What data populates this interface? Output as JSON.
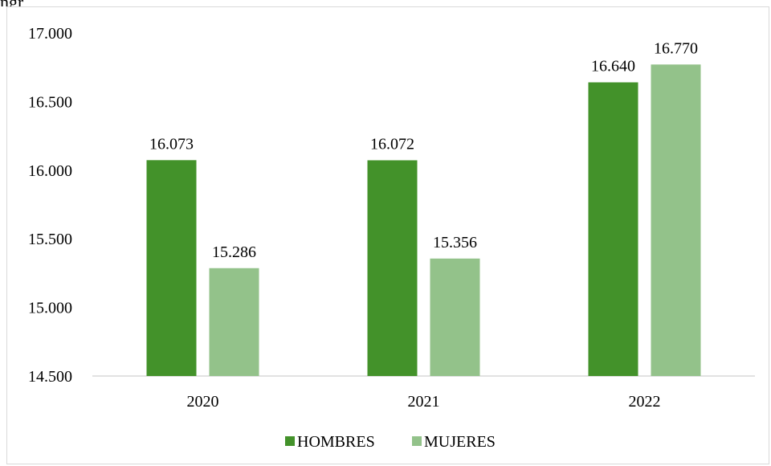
{
  "header": {
    "top_text": "ngr"
  },
  "chart_data": {
    "type": "bar",
    "title": "",
    "xlabel": "",
    "ylabel": "",
    "categories": [
      "2020",
      "2021",
      "2022"
    ],
    "series": [
      {
        "name": "HOMBRES",
        "values": [
          16073,
          16072,
          16640
        ],
        "labels": [
          "16.073",
          "16.072",
          "16.640"
        ],
        "color": "#43922a"
      },
      {
        "name": "MUJERES",
        "values": [
          15286,
          15356,
          16770
        ],
        "labels": [
          "15.286",
          "15.356",
          "16.770"
        ],
        "color": "#93c28a"
      }
    ],
    "ylim": [
      14500,
      17000
    ],
    "yticks": [
      14500,
      15000,
      15500,
      16000,
      16500,
      17000
    ],
    "ytick_labels": [
      "14.500",
      "15.000",
      "15.500",
      "16.000",
      "16.500",
      "17.000"
    ],
    "grid": false,
    "legend": "bottom"
  }
}
